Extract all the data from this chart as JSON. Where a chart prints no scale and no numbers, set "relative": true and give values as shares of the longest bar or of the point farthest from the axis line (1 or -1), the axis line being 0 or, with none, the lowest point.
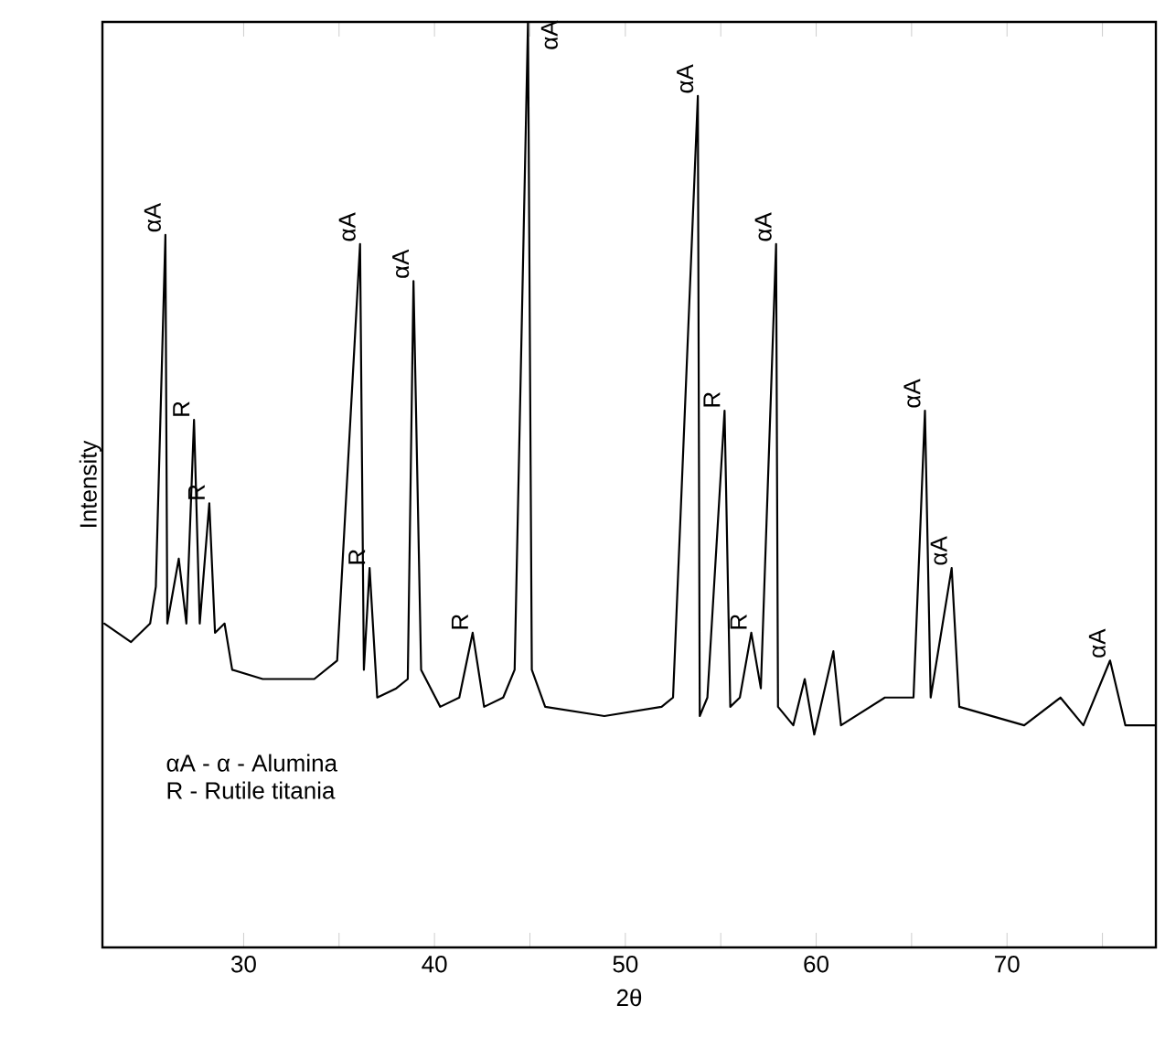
{
  "chart_data": {
    "type": "line",
    "relative": true,
    "xlabel": "2θ",
    "ylabel": "Intensity",
    "xlim": [
      22.6,
      77.8
    ],
    "xticks": [
      30,
      {
        "value": 35,
        "label": null
      },
      40,
      {
        "value": 45,
        "label": null
      },
      50,
      {
        "value": 55,
        "label": null
      },
      60,
      {
        "value": 65,
        "label": null
      },
      70,
      {
        "value": 75,
        "label": null
      }
    ],
    "grid": false,
    "marker": "none",
    "line_style": "solid",
    "series": [
      {
        "color": "#000000",
        "x": [
          22.7,
          24.1,
          25.1,
          25.4,
          25.9,
          26.0,
          26.6,
          27.0,
          27.4,
          27.7,
          28.2,
          28.5,
          29.0,
          29.4,
          31.0,
          33.7,
          34.9,
          36.1,
          36.3,
          36.6,
          37.0,
          38.0,
          38.6,
          38.9,
          39.3,
          40.3,
          41.3,
          42.0,
          42.6,
          43.6,
          44.2,
          44.9,
          45.1,
          45.8,
          48.9,
          51.9,
          52.5,
          53.8,
          53.9,
          54.3,
          55.2,
          55.5,
          56.0,
          56.6,
          57.1,
          57.9,
          58.0,
          58.8,
          59.4,
          59.9,
          60.9,
          61.3,
          63.6,
          65.1,
          65.7,
          66.0,
          67.1,
          67.5,
          70.9,
          72.8,
          74.0,
          75.4,
          76.2,
          77.8
        ],
        "values": [
          0.35,
          0.33,
          0.35,
          0.39,
          0.77,
          0.35,
          0.42,
          0.35,
          0.57,
          0.35,
          0.48,
          0.34,
          0.35,
          0.3,
          0.29,
          0.29,
          0.31,
          0.76,
          0.3,
          0.41,
          0.27,
          0.28,
          0.29,
          0.72,
          0.3,
          0.26,
          0.27,
          0.34,
          0.26,
          0.27,
          0.3,
          1.0,
          0.3,
          0.26,
          0.25,
          0.26,
          0.27,
          0.92,
          0.25,
          0.27,
          0.58,
          0.26,
          0.27,
          0.34,
          0.28,
          0.76,
          0.26,
          0.24,
          0.29,
          0.23,
          0.32,
          0.24,
          0.27,
          0.27,
          0.58,
          0.27,
          0.41,
          0.26,
          0.24,
          0.27,
          0.24,
          0.31,
          0.24,
          0.24
        ]
      }
    ],
    "annotations": [
      {
        "text": "αA",
        "x": 25.9,
        "y": 0.77
      },
      {
        "text": "R",
        "x": 27.4,
        "y": 0.57
      },
      {
        "text": "R",
        "x": 28.2,
        "y": 0.48
      },
      {
        "text": "αA",
        "x": 36.1,
        "y": 0.76
      },
      {
        "text": "R",
        "x": 36.6,
        "y": 0.41
      },
      {
        "text": "αA",
        "x": 38.9,
        "y": 0.72
      },
      {
        "text": "R",
        "x": 42.0,
        "y": 0.34
      },
      {
        "text": "αA",
        "x": 44.9,
        "y": 1.0
      },
      {
        "text": "αA",
        "x": 53.8,
        "y": 0.92
      },
      {
        "text": "R",
        "x": 55.2,
        "y": 0.58
      },
      {
        "text": "R",
        "x": 56.6,
        "y": 0.34
      },
      {
        "text": "αA",
        "x": 57.9,
        "y": 0.76
      },
      {
        "text": "αA",
        "x": 65.7,
        "y": 0.58
      },
      {
        "text": "αA",
        "x": 67.1,
        "y": 0.41
      },
      {
        "text": "αA",
        "x": 75.4,
        "y": 0.31
      },
      "αA - α - Alumina",
      "R - Rutile titania"
    ]
  }
}
